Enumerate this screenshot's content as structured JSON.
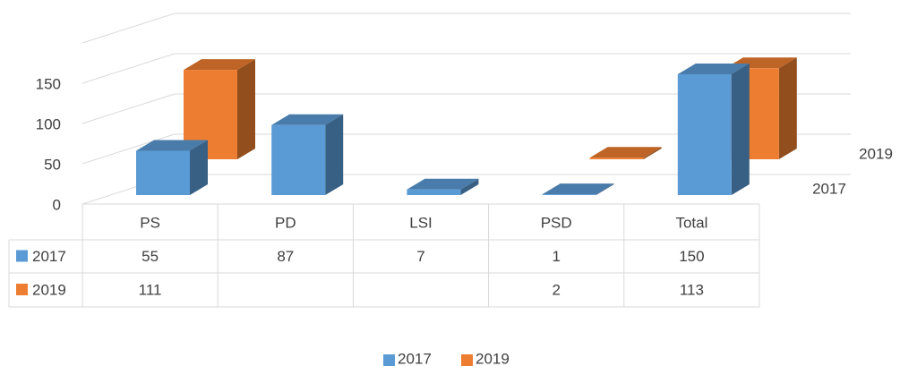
{
  "chart_data": {
    "type": "bar3d",
    "categories": [
      "PS",
      "PD",
      "LSI",
      "PSD",
      "Total"
    ],
    "series": [
      {
        "name": "2017",
        "color": "#5b9bd5",
        "values": [
          55,
          87,
          7,
          1,
          150
        ]
      },
      {
        "name": "2019",
        "color": "#ed7d31",
        "values": [
          111,
          null,
          null,
          2,
          113
        ]
      }
    ],
    "ylim": [
      0,
      200
    ],
    "yticks": [
      0,
      50,
      100,
      150
    ],
    "grid": true,
    "legend": "bottom",
    "data_table": true
  }
}
